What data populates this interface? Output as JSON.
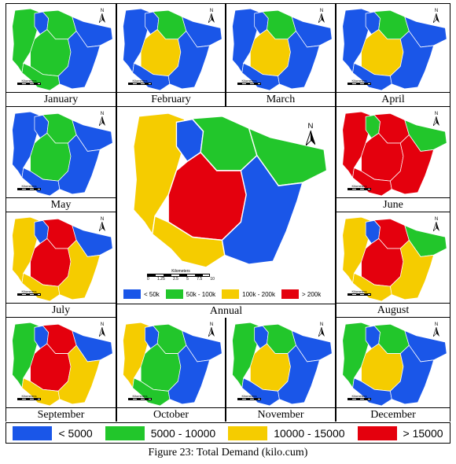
{
  "colors": {
    "blue": "#1a56e8",
    "green": "#22c62b",
    "yellow": "#f5cc00",
    "red": "#e4000d"
  },
  "north_label": "N",
  "scale_label": "Kilometers",
  "annual_scale_ticks": [
    "0",
    "1.25",
    "2.5",
    "5",
    "7.5",
    "10"
  ],
  "months": [
    {
      "name": "January",
      "pattern": [
        "g",
        "b",
        "g",
        "g",
        "g",
        "b",
        "b"
      ]
    },
    {
      "name": "February",
      "pattern": [
        "b",
        "b",
        "g",
        "y",
        "b",
        "b",
        "b"
      ]
    },
    {
      "name": "March",
      "pattern": [
        "b",
        "b",
        "g",
        "y",
        "b",
        "b",
        "b"
      ]
    },
    {
      "name": "April",
      "pattern": [
        "b",
        "b",
        "g",
        "y",
        "b",
        "b",
        "b"
      ]
    },
    {
      "name": "May",
      "pattern": [
        "b",
        "b",
        "g",
        "g",
        "b",
        "b",
        "b"
      ]
    },
    {
      "name": "June",
      "pattern": [
        "r",
        "g",
        "r",
        "r",
        "r",
        "g",
        "r"
      ]
    },
    {
      "name": "July",
      "pattern": [
        "y",
        "b",
        "r",
        "r",
        "y",
        "b",
        "y"
      ]
    },
    {
      "name": "August",
      "pattern": [
        "y",
        "b",
        "r",
        "r",
        "y",
        "g",
        "y"
      ]
    },
    {
      "name": "September",
      "pattern": [
        "g",
        "b",
        "r",
        "r",
        "y",
        "b",
        "y"
      ]
    },
    {
      "name": "October",
      "pattern": [
        "y",
        "b",
        "g",
        "g",
        "g",
        "b",
        "b"
      ]
    },
    {
      "name": "November",
      "pattern": [
        "g",
        "b",
        "g",
        "y",
        "b",
        "b",
        "b"
      ]
    },
    {
      "name": "December",
      "pattern": [
        "g",
        "b",
        "g",
        "y",
        "b",
        "b",
        "b"
      ]
    }
  ],
  "annual": {
    "name": "Annual",
    "pattern": [
      "y",
      "b",
      "g",
      "r",
      "y",
      "g",
      "b"
    ],
    "legend": [
      {
        "label": "< 50k",
        "color": "b"
      },
      {
        "label": "50k - 100k",
        "color": "g"
      },
      {
        "label": "100k - 200k",
        "color": "y"
      },
      {
        "label": "> 200k",
        "color": "r"
      }
    ]
  },
  "legend": [
    {
      "label": "< 5000",
      "color": "b"
    },
    {
      "label": "5000 - 10000",
      "color": "g"
    },
    {
      "label": "10000 - 15000",
      "color": "y"
    },
    {
      "label": "> 15000",
      "color": "r"
    }
  ],
  "caption": "Figure 23: Total Demand (kilo.cum)"
}
